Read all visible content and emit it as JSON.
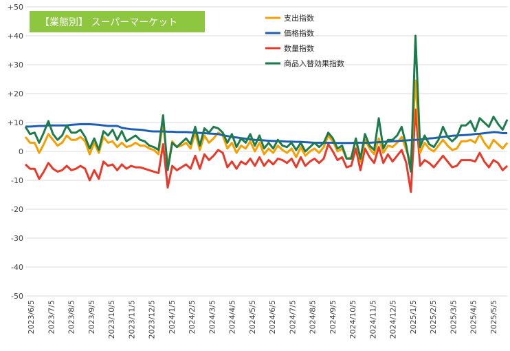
{
  "chart_data": {
    "type": "line",
    "title": "【業態別】 スーパーマーケット",
    "title_bg_color": "#8DC63F",
    "ylim": [
      -50,
      50
    ],
    "yticks": [
      "+50",
      "+40",
      "+30",
      "+20",
      "+10",
      "0",
      "-10",
      "-20",
      "-30",
      "-40",
      "-50"
    ],
    "ytick_values": [
      50,
      40,
      30,
      20,
      10,
      0,
      -10,
      -20,
      -30,
      -40,
      -50
    ],
    "xlabels": [
      "2023/6/5",
      "2023/7/5",
      "2023/8/5",
      "2023/9/5",
      "2023/10/5",
      "2023/11/5",
      "2023/12/5",
      "2024/1/5",
      "2024/2/5",
      "2024/3/5",
      "2024/4/5",
      "2024/5/5",
      "2024/6/5",
      "2024/7/5",
      "2024/8/5",
      "2024/9/5",
      "2024/10/5",
      "2024/11/5",
      "2024/12/5",
      "2025/1/5",
      "2025/2/5",
      "2025/3/5",
      "2025/4/5",
      "2025/5/5"
    ],
    "grid": true,
    "legend_position": "top-right",
    "series": [
      {
        "name": "支出指数",
        "color": "#F5A000",
        "values": [
          5.0,
          3.0,
          3.0,
          -0.5,
          2.5,
          6.0,
          4.0,
          2.0,
          3.0,
          5.5,
          4.0,
          4.0,
          5.0,
          3.5,
          -1.0,
          3.0,
          -0.5,
          5.0,
          3.0,
          3.5,
          1.5,
          3.0,
          1.5,
          2.0,
          3.0,
          2.0,
          2.0,
          1.0,
          0.5,
          -1.0,
          10.5,
          -5.5,
          3.5,
          1.5,
          2.0,
          3.0,
          1.0,
          6.5,
          0.5,
          5.5,
          3.0,
          4.5,
          6.5,
          5.5,
          1.0,
          3.0,
          -0.5,
          2.0,
          1.0,
          3.5,
          0.0,
          3.0,
          -1.0,
          1.0,
          -0.5,
          2.0,
          0.5,
          -0.5,
          1.0,
          -2.0,
          1.5,
          -1.5,
          0.0,
          1.0,
          -0.5,
          1.5,
          5.5,
          3.5,
          0.0,
          1.0,
          -2.5,
          -2.0,
          4.0,
          -3.5,
          4.0,
          1.0,
          -1.0,
          4.5,
          -0.5,
          2.0,
          1.5,
          3.0,
          5.0,
          0.5,
          -4.0,
          24.5,
          -0.5,
          3.0,
          1.0,
          0.0,
          2.0,
          4.0,
          2.0,
          0.5,
          1.0,
          3.5,
          3.5,
          4.0,
          3.0,
          6.0,
          3.0,
          1.0,
          4.0,
          2.5,
          1.0,
          3.0
        ]
      },
      {
        "name": "価格指数",
        "color": "#1F5FB3",
        "values": [
          8.6,
          8.6,
          8.7,
          8.8,
          8.8,
          9.0,
          9.0,
          9.0,
          9.0,
          9.0,
          9.2,
          9.3,
          9.4,
          9.4,
          9.4,
          9.3,
          9.2,
          9.0,
          8.8,
          8.8,
          8.8,
          8.2,
          7.9,
          7.7,
          7.6,
          7.5,
          7.3,
          7.0,
          6.9,
          6.9,
          6.9,
          6.8,
          6.8,
          6.7,
          6.7,
          6.7,
          6.6,
          6.5,
          6.4,
          6.3,
          6.2,
          6.1,
          6.0,
          5.6,
          5.3,
          5.0,
          4.8,
          4.6,
          4.4,
          4.2,
          4.0,
          3.9,
          3.8,
          3.7,
          3.6,
          3.6,
          3.5,
          3.4,
          3.4,
          3.3,
          3.3,
          3.2,
          3.1,
          3.0,
          3.0,
          3.0,
          3.0,
          3.0,
          2.9,
          2.9,
          2.9,
          2.9,
          3.0,
          3.0,
          3.0,
          3.0,
          3.1,
          3.2,
          3.3,
          3.4,
          3.5,
          3.6,
          3.7,
          3.8,
          3.9,
          4.0,
          4.1,
          4.3,
          4.5,
          4.6,
          4.8,
          5.0,
          5.2,
          5.4,
          5.5,
          5.6,
          5.7,
          5.8,
          6.0,
          6.1,
          6.3,
          6.5,
          6.7,
          6.6,
          6.3,
          6.3
        ]
      },
      {
        "name": "数量指数",
        "color": "#E8392A",
        "values": [
          -4.5,
          -6.0,
          -6.0,
          -9.5,
          -7.0,
          -4.0,
          -6.0,
          -7.0,
          -6.5,
          -5.0,
          -6.5,
          -6.0,
          -5.0,
          -6.0,
          -10.0,
          -6.5,
          -9.5,
          -3.5,
          -5.0,
          -4.5,
          -6.5,
          -4.5,
          -6.0,
          -5.0,
          -5.5,
          -5.5,
          -6.0,
          -6.5,
          -7.0,
          -7.5,
          2.5,
          -12.5,
          -5.0,
          -6.5,
          -5.5,
          -4.5,
          -6.0,
          -1.5,
          -6.0,
          -1.0,
          -3.0,
          -1.5,
          0.5,
          -0.5,
          -5.5,
          -3.5,
          -6.0,
          -3.5,
          -4.5,
          -2.5,
          -5.0,
          -2.0,
          -5.0,
          -3.0,
          -4.5,
          -2.5,
          -3.0,
          -4.0,
          -2.5,
          -5.5,
          -2.0,
          -5.0,
          -3.5,
          -2.5,
          -4.0,
          -2.5,
          2.5,
          0.0,
          -3.0,
          -2.0,
          -5.5,
          -5.0,
          1.0,
          -6.5,
          1.0,
          -2.0,
          -4.0,
          1.5,
          -4.0,
          -1.0,
          -3.5,
          -1.5,
          0.5,
          -4.0,
          -14.0,
          14.5,
          -5.0,
          -3.0,
          -4.0,
          -5.5,
          -3.5,
          -1.5,
          -3.5,
          -5.5,
          -5.0,
          -3.0,
          -3.0,
          -3.0,
          -3.5,
          -0.5,
          -3.5,
          -5.5,
          -3.0,
          -4.0,
          -6.5,
          -5.0
        ]
      },
      {
        "name": "商品入替効果指数",
        "color": "#1E7B4B",
        "values": [
          8.5,
          6.0,
          6.5,
          3.0,
          6.5,
          10.5,
          6.0,
          4.0,
          5.5,
          9.0,
          6.5,
          6.5,
          7.5,
          5.0,
          1.0,
          4.5,
          0.5,
          7.0,
          5.5,
          7.5,
          4.0,
          7.0,
          3.5,
          4.5,
          5.5,
          4.0,
          3.5,
          2.0,
          1.5,
          0.5,
          12.5,
          -6.5,
          3.0,
          1.5,
          3.0,
          4.5,
          2.5,
          8.5,
          2.0,
          8.0,
          6.5,
          8.5,
          8.0,
          6.5,
          3.0,
          6.0,
          1.5,
          4.5,
          3.0,
          6.0,
          2.0,
          5.5,
          1.0,
          3.0,
          1.0,
          4.0,
          2.0,
          1.5,
          3.0,
          0.5,
          3.0,
          0.0,
          1.5,
          3.0,
          1.5,
          3.0,
          6.5,
          4.5,
          1.0,
          2.0,
          -2.5,
          -2.5,
          4.5,
          -2.5,
          6.0,
          2.0,
          0.5,
          11.5,
          1.0,
          4.0,
          4.0,
          5.5,
          8.5,
          2.0,
          -7.0,
          40.0,
          1.5,
          5.5,
          2.5,
          1.5,
          4.0,
          8.5,
          5.0,
          3.5,
          5.0,
          9.0,
          9.0,
          10.5,
          7.0,
          11.5,
          10.0,
          8.5,
          12.0,
          9.5,
          7.5,
          11.0
        ]
      }
    ]
  }
}
